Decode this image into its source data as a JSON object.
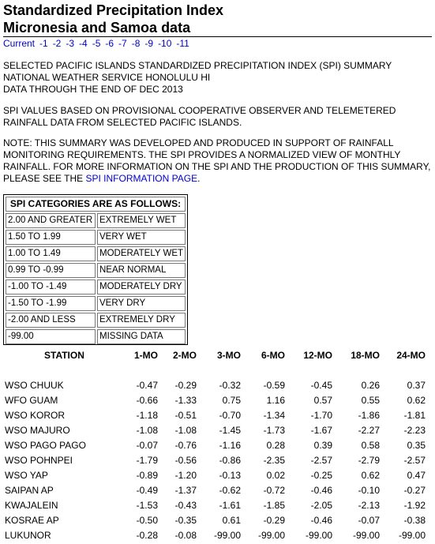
{
  "title_line1": "Standardized Precipitation Index",
  "title_line2": "Micronesia and Samoa data",
  "nav": [
    "Current",
    "-1",
    "-2",
    "-3",
    "-4",
    "-5",
    "-6",
    "-7",
    "-8",
    "-9",
    "-10",
    "-11"
  ],
  "para1": [
    "SELECTED PACIFIC ISLANDS STANDARDIZED PRECIPITATION INDEX (SPI) SUMMARY",
    "NATIONAL WEATHER SERVICE HONOLULU HI",
    "DATA THROUGH THE END OF DEC 2013"
  ],
  "para2": [
    "SPI VALUES BASED ON PROVISIONAL COOPERATIVE OBSERVER AND TELEMETERED",
    "RAINFALL DATA FROM SELECTED PACIFIC ISLANDS."
  ],
  "para3": [
    "NOTE: THIS SUMMARY WAS DEVELOPED AND PRODUCED IN SUPPORT OF RAINFALL",
    "MONITORING REQUIREMENTS. THE SPI PROVIDES A NORMALIZED VIEW OF MONTHLY",
    "RAINFALL. FOR MORE INFORMATION ON THE SPI AND THE PRODUCTION OF THIS SUMMARY,"
  ],
  "para3_last_prefix": "PLEASE SEE THE ",
  "para3_link": "SPI INFORMATION PAGE",
  "para3_last_suffix": ".",
  "categories_title": "SPI CATEGORIES ARE AS FOLLOWS:",
  "categories": [
    [
      "2.00 AND GREATER",
      "EXTREMELY WET"
    ],
    [
      "1.50 TO 1.99",
      "VERY WET"
    ],
    [
      "1.00 TO 1.49",
      "MODERATELY WET"
    ],
    [
      "0.99 TO -0.99",
      "NEAR NORMAL"
    ],
    [
      "-1.00 TO -1.49",
      "MODERATELY DRY"
    ],
    [
      "-1.50 TO -1.99",
      "VERY DRY"
    ],
    [
      "-2.00 AND LESS",
      "EXTREMELY DRY"
    ],
    [
      "-99.00",
      "MISSING DATA"
    ]
  ],
  "table_headers": [
    "STATION",
    "1-MO",
    "2-MO",
    "3-MO",
    "6-MO",
    "12-MO",
    "18-MO",
    "24-MO"
  ],
  "stations": [
    [
      "WSO CHUUK",
      "-0.47",
      "-0.29",
      "-0.32",
      "-0.59",
      "-0.45",
      "0.26",
      "0.37"
    ],
    [
      "WFO GUAM",
      "-0.66",
      "-1.33",
      "0.75",
      "1.16",
      "0.57",
      "0.55",
      "0.62"
    ],
    [
      "WSO KOROR",
      "-1.18",
      "-0.51",
      "-0.70",
      "-1.34",
      "-1.70",
      "-1.86",
      "-1.81"
    ],
    [
      "WSO MAJURO",
      "-1.08",
      "-1.08",
      "-1.45",
      "-1.73",
      "-1.67",
      "-2.27",
      "-2.23"
    ],
    [
      "WSO PAGO PAGO",
      "-0.07",
      "-0.76",
      "-1.16",
      "0.28",
      "0.39",
      "0.58",
      "0.35"
    ],
    [
      "WSO POHNPEI",
      "-1.79",
      "-0.56",
      "-0.86",
      "-2.35",
      "-2.57",
      "-2.79",
      "-2.57"
    ],
    [
      "WSO YAP",
      "-0.89",
      "-1.20",
      "-0.13",
      "0.02",
      "-0.25",
      "0.62",
      "0.47"
    ],
    [
      "SAIPAN AP",
      "-0.49",
      "-1.37",
      "-0.62",
      "-0.72",
      "-0.46",
      "-0.10",
      "-0.27"
    ],
    [
      "KWAJALEIN",
      "-1.53",
      "-0.43",
      "-1.61",
      "-1.85",
      "-2.05",
      "-2.13",
      "-1.92"
    ],
    [
      "KOSRAE AP",
      "-0.50",
      "-0.35",
      "0.61",
      "-0.29",
      "-0.46",
      "-0.07",
      "-0.38"
    ],
    [
      "LUKUNOR",
      "-0.28",
      "-0.08",
      "-99.00",
      "-99.00",
      "-99.00",
      "-99.00",
      "-99.00"
    ]
  ]
}
